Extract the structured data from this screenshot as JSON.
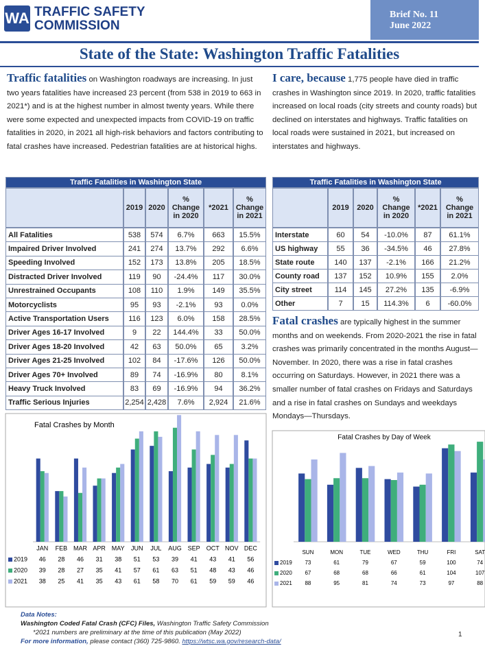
{
  "header": {
    "logo": "WA",
    "org_line1": "TRAFFIC SAFETY",
    "org_line2": "COMMISSION",
    "brief": "Brief No. 11",
    "date": "June 2022"
  },
  "title": "State of the State: Washington Traffic Fatalities",
  "sections": [
    {
      "lead": "Traffic fatalities",
      "text": " on Washington roadways are increasing. In just two years fatalities have increased 23 percent (from 538 in 2019 to 663 in 2021*) and is at the highest number in almost twenty years. While there were some expected and unexpected impacts from COVID-19 on traffic fatalities in 2020, in 2021 all high-risk behaviors and factors contributing to fatal crashes have increased. Pedestrian fatalities are at historical highs."
    },
    {
      "lead": "I care, because",
      "text": " 1,775 people have died in traffic crashes in Washington since 2019. In 2020, traffic fatalities increased on local roads (city streets and county roads) but declined on interstates and highways. Traffic fatalities on local roads were sustained in 2021, but increased on interstates and highways."
    },
    {
      "lead": "Fatal crashes",
      "text": " are typically highest in the summer months and on weekends. From 2020-2021 the rise in fatal crashes was primarily concentrated in the months August—November. In 2020, there was a rise in fatal crashes occurring on Saturdays. However, in 2021 there was a smaller number of fatal crashes on Fridays and Saturdays and a rise in fatal crashes on Sundays and weekdays Mondays—Thursdays."
    }
  ],
  "tables": [
    {
      "title": "Traffic Fatalities in Washington State",
      "columns": [
        "",
        "2019",
        "2020",
        "% Change in 2020",
        "*2021",
        "% Change in 2021"
      ],
      "rows": [
        [
          "All Fatalities",
          "538",
          "574",
          "6.7%",
          "663",
          "15.5%"
        ],
        [
          "Impaired Driver Involved",
          "241",
          "274",
          "13.7%",
          "292",
          "6.6%"
        ],
        [
          "Speeding Involved",
          "152",
          "173",
          "13.8%",
          "205",
          "18.5%"
        ],
        [
          "Distracted Driver Involved",
          "119",
          "90",
          "-24.4%",
          "117",
          "30.0%"
        ],
        [
          "Unrestrained Occupants",
          "108",
          "110",
          "1.9%",
          "149",
          "35.5%"
        ],
        [
          "Motorcyclists",
          "95",
          "93",
          "-2.1%",
          "93",
          "0.0%"
        ],
        [
          "Active Transportation Users",
          "116",
          "123",
          "6.0%",
          "158",
          "28.5%"
        ],
        [
          "Driver Ages 16-17 Involved",
          "9",
          "22",
          "144.4%",
          "33",
          "50.0%"
        ],
        [
          "Driver Ages 18-20 Involved",
          "42",
          "63",
          "50.0%",
          "65",
          "3.2%"
        ],
        [
          "Driver Ages 21-25 Involved",
          "102",
          "84",
          "-17.6%",
          "126",
          "50.0%"
        ],
        [
          "Driver Ages 70+ Involved",
          "89",
          "74",
          "-16.9%",
          "80",
          "8.1%"
        ],
        [
          "Heavy Truck Involved",
          "83",
          "69",
          "-16.9%",
          "94",
          "36.2%"
        ],
        [
          "Traffic Serious Injuries",
          "2,254",
          "2,428",
          "7.6%",
          "2,924",
          "21.6%"
        ]
      ]
    },
    {
      "title": "Traffic Fatalities in Washington State",
      "columns": [
        "",
        "2019",
        "2020",
        "% Change in 2020",
        "*2021",
        "% Change in 2021"
      ],
      "rows": [
        [
          "Interstate",
          "60",
          "54",
          "-10.0%",
          "87",
          "61.1%"
        ],
        [
          "US highway",
          "55",
          "36",
          "-34.5%",
          "46",
          "27.8%"
        ],
        [
          "State route",
          "140",
          "137",
          "-2.1%",
          "166",
          "21.2%"
        ],
        [
          "County road",
          "137",
          "152",
          "10.9%",
          "155",
          "2.0%"
        ],
        [
          "City street",
          "114",
          "145",
          "27.2%",
          "135",
          "-6.9%"
        ],
        [
          "Other",
          "7",
          "15",
          "114.3%",
          "6",
          "-60.0%"
        ]
      ]
    }
  ],
  "chart_data": [
    {
      "type": "bar",
      "title": "Fatal Crashes by Month",
      "categories": [
        "JAN",
        "FEB",
        "MAR",
        "APR",
        "MAY",
        "JUN",
        "JUL",
        "AUG",
        "SEP",
        "OCT",
        "NOV",
        "DEC"
      ],
      "series": [
        {
          "name": "2019",
          "color": "#2f4b9f",
          "values": [
            46,
            28,
            46,
            31,
            38,
            51,
            53,
            39,
            41,
            43,
            41,
            56
          ]
        },
        {
          "name": "2020",
          "color": "#3fae7c",
          "values": [
            39,
            28,
            27,
            35,
            41,
            57,
            61,
            63,
            51,
            48,
            43,
            46
          ]
        },
        {
          "name": "2021",
          "color": "#a9b5e8",
          "values": [
            38,
            25,
            41,
            35,
            43,
            61,
            58,
            70,
            61,
            59,
            59,
            46
          ]
        }
      ],
      "ylim": [
        0,
        72
      ]
    },
    {
      "type": "bar",
      "title": "Fatal Crashes by Day of Week",
      "categories": [
        "SUN",
        "MON",
        "TUE",
        "WED",
        "THU",
        "FRI",
        "SAT"
      ],
      "series": [
        {
          "name": "2019",
          "color": "#2f4b9f",
          "values": [
            73,
            61,
            79,
            67,
            59,
            100,
            74
          ]
        },
        {
          "name": "2020",
          "color": "#3fae7c",
          "values": [
            67,
            68,
            68,
            66,
            61,
            104,
            107
          ]
        },
        {
          "name": "2021",
          "color": "#a9b5e8",
          "values": [
            88,
            95,
            81,
            74,
            73,
            97,
            88
          ]
        }
      ],
      "ylim": [
        0,
        110
      ]
    }
  ],
  "notes": {
    "heading": "Data Notes:",
    "source": "Washington Coded Fatal Crash (CFC) Files,",
    "source_org": " Washington Traffic Safety Commission",
    "footnote": "*2021 numbers are preliminary at the time of this publication (May 2022)",
    "contact_lead": "For more information,",
    "contact": " please contact (360) 725-9860.",
    "link": "https://wtsc.wa.gov/research-data/",
    "page": "1"
  }
}
